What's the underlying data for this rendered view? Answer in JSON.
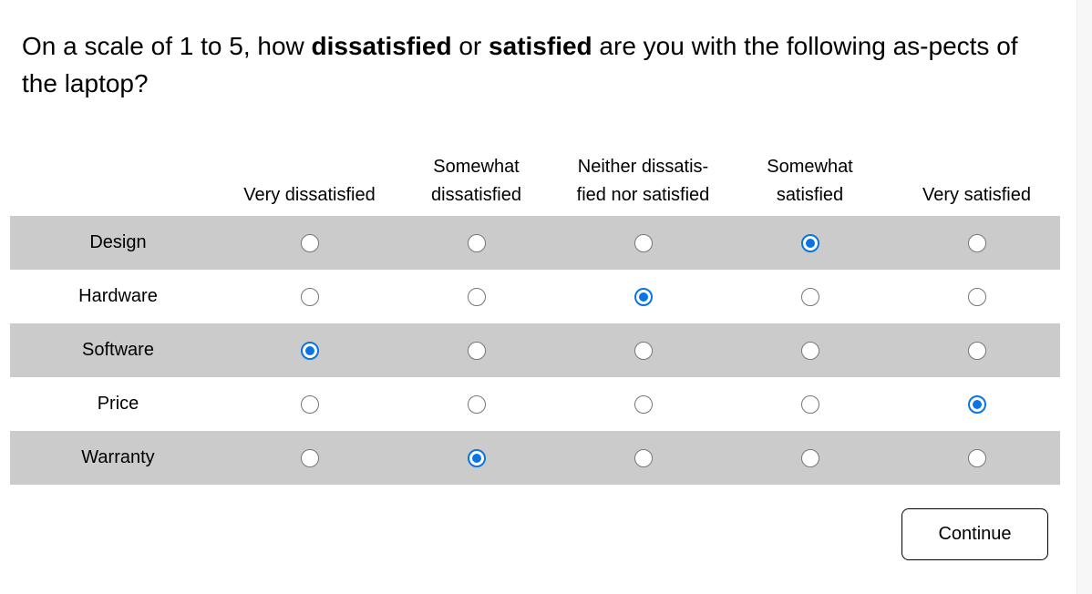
{
  "question": {
    "part1": "On a scale of 1 to 5, how ",
    "bold1": "dissatisfied",
    "part2": " or ",
    "bold2": "satisfied",
    "part3": " are you with the following as-pects of the laptop?"
  },
  "scale": {
    "columns": [
      {
        "line1": "",
        "line2": "Very dissatisfied"
      },
      {
        "line1": "Somewhat",
        "line2": "dissatisfied"
      },
      {
        "line1": "Neither dissatis-",
        "line2": "fied nor satisfied"
      },
      {
        "line1": "Somewhat",
        "line2": "satisfied"
      },
      {
        "line1": "",
        "line2": "Very satisfied"
      }
    ]
  },
  "rows": [
    {
      "label": "Design",
      "selected": 4
    },
    {
      "label": "Hardware",
      "selected": 3
    },
    {
      "label": "Software",
      "selected": 1
    },
    {
      "label": "Price",
      "selected": 5
    },
    {
      "label": "Warranty",
      "selected": 2
    }
  ],
  "colors": {
    "accent": "#0b74e5",
    "shaded_row": "#cbcbcb"
  },
  "continue_label": "Continue"
}
